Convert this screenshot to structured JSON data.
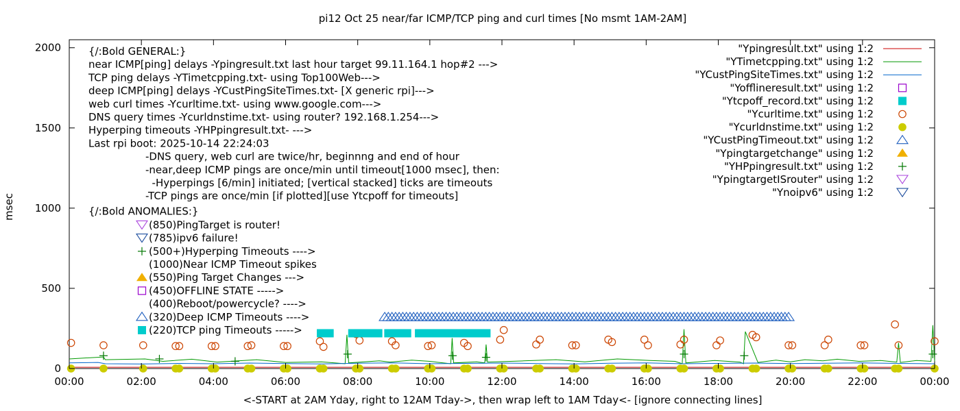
{
  "chart_data": {
    "type": "line",
    "title": "pi12 Oct 25  near/far ICMP/TCP ping and curl times [No msmt 1AM-2AM]",
    "xlabel": "<-START at 2AM Yday, right to 12AM Tday->, then wrap left to 1AM Tday<- [ignore connecting lines]",
    "ylabel": "msec",
    "xlim": [
      0,
      24
    ],
    "ylim": [
      0,
      2050
    ],
    "x_tick_labels": [
      "00:00",
      "02:00",
      "04:00",
      "06:00",
      "08:00",
      "10:00",
      "12:00",
      "14:00",
      "16:00",
      "18:00",
      "20:00",
      "22:00",
      "00:00"
    ],
    "y_ticks": [
      0,
      500,
      1000,
      1500,
      2000
    ],
    "grid": false,
    "legend_position": "top-right",
    "legend": [
      {
        "label": "\"Ypingresult.txt\" using 1:2",
        "style": "line",
        "color": "#cc0000"
      },
      {
        "label": "\"YTimetcpping.txt\" using 1:2",
        "style": "line",
        "color": "#009900"
      },
      {
        "label": "\"YCustPingSiteTimes.txt\" using 1:2",
        "style": "line",
        "color": "#0066cc"
      },
      {
        "label": "\"Yofflineresult.txt\" using 1:2",
        "style": "open-square",
        "color": "#9900cc"
      },
      {
        "label": "\"Ytcpoff_record.txt\" using 1:2",
        "style": "filled-square",
        "color": "#00cccc"
      },
      {
        "label": "\"Ycurltime.txt\" using 1:2",
        "style": "open-circle",
        "color": "#cc4400"
      },
      {
        "label": "\"Ycurldnstime.txt\" using 1:2",
        "style": "filled-circle",
        "color": "#cccc00"
      },
      {
        "label": "\"YCustPingTimeout.txt\" using 1:2",
        "style": "open-triangle",
        "color": "#1f5fbf"
      },
      {
        "label": "\"Ypingtargetchange\" using 1:2",
        "style": "filled-triangle",
        "color": "#f0b000"
      },
      {
        "label": "\"YHPpingresult.txt\" using 1:2",
        "style": "plus",
        "color": "#007700"
      },
      {
        "label": "\"YpingtargetISrouter\" using 1:2",
        "style": "open-down-triangle",
        "color": "#aa44dd"
      },
      {
        "label": "\"Ynoipv6\" using 1:2",
        "style": "open-down-triangle",
        "color": "#1f4f9f"
      }
    ],
    "annotations_general": [
      "{/:Bold GENERAL:}",
      "near ICMP[ping] delays -Ypingresult.txt last hour target 99.11.164.1 hop#2 --->",
      "TCP ping delays -YTimetcpping.txt- using Top100Web--->",
      "deep ICMP[ping] delays -YCustPingSiteTimes.txt- [X generic rpi]--->",
      "web curl times -Ycurltime.txt- using www.google.com--->",
      "DNS query times -Ycurldnstime.txt- using router? 192.168.1.254--->",
      "Hyperping timeouts -YHPpingresult.txt- --->",
      "Last rpi boot: 2025-10-14 22:24:03"
    ],
    "annotations_notes": [
      "-DNS query, web curl are twice/hr, beginnng and end of hour",
      "-near,deep ICMP pings are once/min until timeout[1000 msec], then:",
      "  -Hyperpings [6/min] initiated; [vertical stacked] ticks are timeouts",
      "-TCP pings are once/min [if plotted][use Ytcpoff for timeouts]"
    ],
    "anomalies_title": "{/:Bold ANOMALIES:}",
    "anomalies": [
      {
        "symbol": "open-down-triangle",
        "color": "#aa44dd",
        "text": "(850)PingTarget is router!"
      },
      {
        "symbol": "open-down-triangle",
        "color": "#1f4f9f",
        "text": "(785)ipv6 failure!"
      },
      {
        "symbol": "plus",
        "color": "#007700",
        "text": "(500+)Hyperping Timeouts ---->"
      },
      {
        "symbol": "none",
        "color": "#000000",
        "text": "(1000)Near ICMP Timeout spikes"
      },
      {
        "symbol": "filled-triangle",
        "color": "#f0b000",
        "text": "(550)Ping Target Changes --->"
      },
      {
        "symbol": "open-square",
        "color": "#9900cc",
        "text": "(450)OFFLINE STATE ----->"
      },
      {
        "symbol": "none",
        "color": "#000000",
        "text": "(400)Reboot/powercycle? ---->"
      },
      {
        "symbol": "open-triangle",
        "color": "#1f5fbf",
        "text": "(320)Deep ICMP Timeouts ---->"
      },
      {
        "symbol": "filled-square",
        "color": "#00cccc",
        "text": "(220)TCP ping Timeouts ----->"
      }
    ],
    "series": [
      {
        "name": "\"Ypingresult.txt\" using 1:2",
        "kind": "line",
        "color": "#cc0000",
        "x": [
          0,
          0.05,
          0.9,
          0.95,
          23.9,
          24
        ],
        "y": [
          8,
          8,
          8,
          8,
          8,
          8
        ]
      },
      {
        "name": "\"YTimetcpping.txt\" using 1:2",
        "kind": "line",
        "color": "#009900",
        "x": [
          0,
          0.95,
          1.0,
          2.1,
          2.6,
          3.4,
          4.1,
          5.2,
          6.0,
          7.0,
          7.65,
          7.7,
          7.75,
          8.6,
          8.9,
          9.5,
          10.0,
          10.58,
          10.62,
          10.66,
          11.3,
          11.52,
          11.56,
          11.6,
          12.6,
          13.5,
          14.3,
          15.2,
          16.1,
          16.8,
          17.0,
          17.05,
          17.1,
          17.9,
          18.6,
          18.7,
          18.75,
          19.1,
          19.6,
          20.0,
          20.4,
          20.9,
          21.3,
          21.9,
          22.5,
          22.95,
          23.0,
          23.05,
          23.5,
          23.9,
          23.95,
          24.0
        ],
        "y": [
          60,
          72,
          55,
          60,
          45,
          58,
          40,
          55,
          38,
          42,
          30,
          210,
          35,
          48,
          40,
          52,
          45,
          30,
          190,
          35,
          42,
          35,
          150,
          40,
          48,
          55,
          42,
          60,
          50,
          45,
          30,
          245,
          35,
          50,
          40,
          30,
          230,
          38,
          52,
          42,
          55,
          48,
          58,
          45,
          50,
          40,
          160,
          38,
          50,
          45,
          270,
          45
        ]
      },
      {
        "name": "\"YCustPingSiteTimes.txt\" using 1:2",
        "kind": "line",
        "color": "#0066cc",
        "x": [
          0,
          0.8,
          1.0,
          2.0,
          3.0,
          4.0,
          5.0,
          6.0,
          7.0,
          8.0,
          9.0,
          10.0,
          11.0,
          12.0,
          13.0,
          14.0,
          15.0,
          16.0,
          17.0,
          18.0,
          19.0,
          20.0,
          21.0,
          22.0,
          23.0,
          24.0
        ],
        "y": [
          35,
          38,
          30,
          28,
          32,
          30,
          34,
          31,
          29,
          33,
          35,
          30,
          32,
          34,
          31,
          29,
          33,
          35,
          30,
          32,
          34,
          31,
          33,
          35,
          32,
          30
        ]
      },
      {
        "name": "\"Ycurltime.txt\" using 1:2",
        "kind": "open-circle",
        "color": "#cc4400",
        "x": [
          0.05,
          0.95,
          2.05,
          2.95,
          3.05,
          3.95,
          4.05,
          4.95,
          5.05,
          5.95,
          6.05,
          6.95,
          7.05,
          7.95,
          8.05,
          8.95,
          9.05,
          9.95,
          10.05,
          10.95,
          11.05,
          11.95,
          12.05,
          12.95,
          13.05,
          13.95,
          14.05,
          14.95,
          15.05,
          15.95,
          16.05,
          16.95,
          17.05,
          17.95,
          18.05,
          18.95,
          19.05,
          19.95,
          20.05,
          20.95,
          21.05,
          21.95,
          22.05,
          22.9,
          23.0,
          24.0
        ],
        "y": [
          160,
          145,
          145,
          140,
          140,
          140,
          140,
          140,
          145,
          140,
          140,
          170,
          135,
          215,
          175,
          170,
          145,
          140,
          145,
          160,
          140,
          180,
          240,
          150,
          180,
          145,
          145,
          180,
          165,
          180,
          145,
          150,
          180,
          145,
          175,
          210,
          195,
          145,
          145,
          145,
          180,
          145,
          145,
          275,
          145,
          170
        ]
      },
      {
        "name": "\"Ycurldnstime.txt\" using 1:2",
        "kind": "filled-circle",
        "color": "#cccc00",
        "x": [
          0.05,
          0.95,
          2.05,
          2.95,
          3.05,
          3.95,
          4.05,
          4.95,
          5.05,
          5.95,
          6.05,
          6.95,
          7.05,
          7.95,
          8.05,
          8.95,
          9.05,
          9.95,
          10.05,
          10.95,
          11.05,
          11.95,
          12.05,
          12.95,
          13.05,
          13.95,
          14.05,
          14.95,
          15.05,
          15.95,
          16.05,
          16.95,
          17.05,
          17.95,
          18.05,
          18.95,
          19.05,
          19.95,
          20.05,
          20.95,
          21.05,
          21.95,
          22.05,
          22.9,
          23.0,
          24.0
        ],
        "y": [
          0,
          0,
          0,
          0,
          0,
          0,
          0,
          0,
          0,
          0,
          0,
          0,
          0,
          0,
          0,
          0,
          0,
          0,
          0,
          0,
          0,
          0,
          0,
          0,
          0,
          0,
          0,
          0,
          0,
          0,
          0,
          0,
          0,
          0,
          0,
          0,
          0,
          0,
          0,
          0,
          0,
          0,
          0,
          0,
          0,
          0
        ]
      },
      {
        "name": "\"Ytcpoff_record.txt\" using 1:2",
        "kind": "filled-square",
        "color": "#00cccc",
        "x": [
          6.98,
          7.06,
          7.14,
          7.22,
          7.85,
          7.93,
          8.01,
          8.09,
          8.17,
          8.25,
          8.33,
          8.41,
          8.49,
          8.57,
          8.85,
          8.93,
          9.05,
          9.13,
          9.21,
          9.29,
          9.37,
          9.7,
          9.78,
          9.86,
          9.94,
          10.02,
          10.1,
          10.18,
          10.26,
          10.34,
          10.42,
          10.5,
          10.58,
          10.66,
          10.85,
          10.93,
          11.01,
          11.09,
          11.17,
          11.25,
          11.33,
          11.41,
          11.49,
          11.57
        ],
        "y": [
          220,
          220,
          220,
          220,
          220,
          220,
          220,
          220,
          220,
          220,
          220,
          220,
          220,
          220,
          220,
          220,
          220,
          220,
          220,
          220,
          220,
          220,
          220,
          220,
          220,
          220,
          220,
          220,
          220,
          220,
          220,
          220,
          220,
          220,
          220,
          220,
          220,
          220,
          220,
          220,
          220,
          220,
          220,
          220
        ]
      },
      {
        "name": "\"YCustPingTimeout.txt\" using 1:2",
        "kind": "open-triangle",
        "color": "#1f5fbf",
        "x_range": [
          8.75,
          20.0
        ],
        "x_step": 0.1,
        "y_const": 320
      },
      {
        "name": "\"YHPpingresult.txt\" using 1:2",
        "kind": "plus",
        "color": "#007700",
        "x": [
          0.95,
          2.5,
          4.6,
          7.72,
          10.63,
          11.56,
          17.05,
          18.72,
          23.95
        ],
        "y": [
          80,
          60,
          45,
          90,
          80,
          70,
          90,
          80,
          90
        ]
      }
    ]
  }
}
